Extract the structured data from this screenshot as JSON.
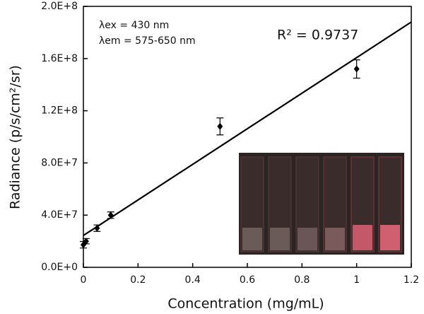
{
  "chart_data": {
    "type": "scatter",
    "xlabel": "Concentration (mg/mL)",
    "ylabel": "Radiance (p/s/cm²/sr)",
    "annotations": [
      "λex = 430 nm",
      "λem = 575-650 nm",
      "R² = 0.9737"
    ],
    "series": [
      {
        "color": "#000000",
        "x": [
          0,
          0.01,
          0.05,
          0.1,
          0.5,
          1
        ],
        "values": [
          17300000,
          20000000,
          30000000,
          40000000,
          108000000,
          152000000
        ],
        "errors": [
          2500000,
          2000000,
          2500000,
          2500000,
          6500000,
          7000000
        ]
      }
    ],
    "fit": {
      "color": "#000000",
      "x": [
        0,
        1.2
      ],
      "values": [
        24400000,
        188000000
      ]
    },
    "xlim": [
      0,
      1.2
    ],
    "xticks": [
      0,
      0.2,
      0.4,
      0.6,
      0.8,
      1,
      1.2
    ],
    "ylim": [
      0,
      200000000
    ],
    "yticks": [
      {
        "value": 0,
        "label": "0.0E+0"
      },
      {
        "value": 40000000,
        "label": "4.0E+7"
      },
      {
        "value": 80000000,
        "label": "8.0E+7"
      },
      {
        "value": 120000000,
        "label": "1.2E+8"
      },
      {
        "value": 160000000,
        "label": "1.6E+8"
      },
      {
        "value": 200000000,
        "label": "2.0E+8"
      }
    ]
  }
}
